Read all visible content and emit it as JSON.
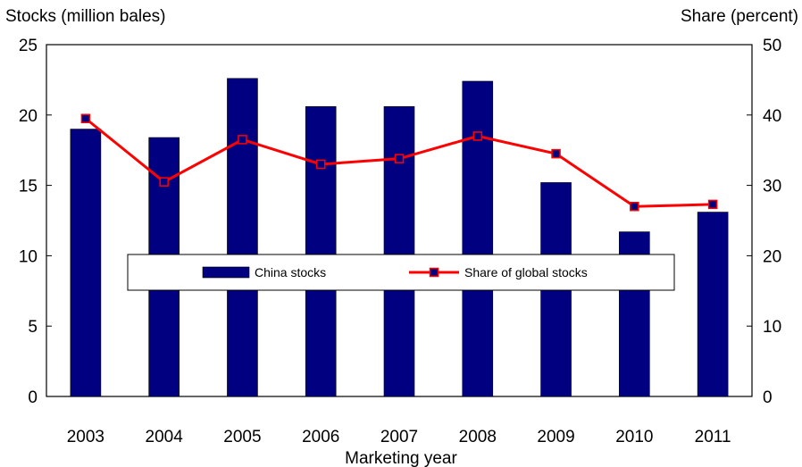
{
  "chart_data": {
    "type": "bar",
    "xlabel": "Marketing year",
    "ylabel_left": "Stocks (million bales)",
    "ylabel_right": "Share (percent)",
    "categories": [
      "2003",
      "2004",
      "2005",
      "2006",
      "2007",
      "2008",
      "2009",
      "2010",
      "2011"
    ],
    "ylim_left": [
      0,
      25
    ],
    "ylim_right": [
      0,
      50
    ],
    "yticks_left": [
      "0",
      "5",
      "10",
      "15",
      "20",
      "25"
    ],
    "yticks_right": [
      "0",
      "10",
      "20",
      "30",
      "40",
      "50"
    ],
    "grid": false,
    "legend_position": "center",
    "series": [
      {
        "name": "China stocks",
        "type": "bar",
        "axis": "left",
        "color": "#000080",
        "values": [
          19.0,
          18.4,
          22.6,
          20.6,
          20.6,
          22.4,
          15.2,
          11.7,
          13.1
        ]
      },
      {
        "name": "Share of global stocks",
        "type": "line",
        "axis": "right",
        "color": "#ff0000",
        "marker_color": "#000080",
        "values": [
          39.5,
          30.5,
          36.5,
          33.0,
          33.8,
          37.0,
          34.5,
          27.0,
          27.3
        ]
      }
    ]
  }
}
